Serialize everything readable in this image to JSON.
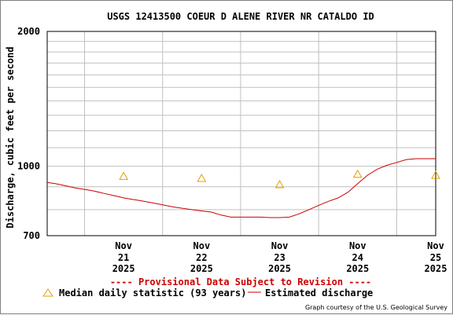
{
  "chart_data": {
    "type": "line",
    "title": "USGS 12413500 COEUR D ALENE RIVER NR CATALDO ID",
    "ylabel": "Discharge, cubic feet per second",
    "xlabel": "",
    "yscale": "log",
    "ylim": [
      700,
      2000
    ],
    "ytick_labels": [
      "2000",
      "1000",
      "700"
    ],
    "ytick_values": [
      2000,
      1000,
      700
    ],
    "xlim": [
      "2025-11-20 12:30",
      "2025-11-25 12:00"
    ],
    "xtick_labels": [
      {
        "month": "Nov",
        "day": "21",
        "year": "2025"
      },
      {
        "month": "Nov",
        "day": "22",
        "year": "2025"
      },
      {
        "month": "Nov",
        "day": "23",
        "year": "2025"
      },
      {
        "month": "Nov",
        "day": "24",
        "year": "2025"
      },
      {
        "month": "Nov",
        "day": "25",
        "year": "2025"
      }
    ],
    "xtick_values": [
      "2025-11-21",
      "2025-11-22",
      "2025-11-23",
      "2025-11-24",
      "2025-11-25"
    ],
    "grid": true,
    "series": [
      {
        "name": "Estimated discharge",
        "color": "#cc0000",
        "x": [
          "2025-11-20 12:30",
          "2025-11-20 15:00",
          "2025-11-20 18:00",
          "2025-11-20 21:00",
          "2025-11-21 00:00",
          "2025-11-21 03:00",
          "2025-11-21 06:00",
          "2025-11-21 09:00",
          "2025-11-21 12:00",
          "2025-11-21 15:00",
          "2025-11-21 18:00",
          "2025-11-21 21:00",
          "2025-11-22 00:00",
          "2025-11-22 03:00",
          "2025-11-22 06:00",
          "2025-11-22 09:00",
          "2025-11-22 12:00",
          "2025-11-22 15:00",
          "2025-11-22 18:00",
          "2025-11-22 21:00",
          "2025-11-23 00:00",
          "2025-11-23 03:00",
          "2025-11-23 06:00",
          "2025-11-23 09:00",
          "2025-11-23 12:00",
          "2025-11-23 15:00",
          "2025-11-23 18:00",
          "2025-11-23 21:00",
          "2025-11-24 00:00",
          "2025-11-24 03:00",
          "2025-11-24 06:00",
          "2025-11-24 09:00",
          "2025-11-24 12:00",
          "2025-11-24 15:00",
          "2025-11-24 18:00",
          "2025-11-24 21:00",
          "2025-11-25 00:00",
          "2025-11-25 03:00",
          "2025-11-25 06:00",
          "2025-11-25 09:00",
          "2025-11-25 12:00"
        ],
        "values": [
          920,
          915,
          905,
          895,
          888,
          880,
          870,
          860,
          850,
          843,
          836,
          828,
          820,
          812,
          806,
          800,
          795,
          790,
          778,
          770,
          770,
          770,
          770,
          768,
          768,
          770,
          783,
          800,
          818,
          835,
          850,
          875,
          915,
          955,
          985,
          1005,
          1020,
          1035,
          1040,
          1040,
          1040
        ]
      },
      {
        "name": "Median daily statistic (93 years)",
        "color": "#e0a000",
        "marker": "triangle",
        "x": [
          "2025-11-21 12:00",
          "2025-11-22 12:00",
          "2025-11-23 12:00",
          "2025-11-24 12:00",
          "2025-11-25 12:00"
        ],
        "values": [
          950,
          940,
          910,
          960,
          955
        ]
      }
    ],
    "legend": {
      "position": "bottom",
      "provisional_note": "---- Provisional Data Subject to Revision ----",
      "median_label": "Median daily statistic (93 years)",
      "discharge_label": "Estimated discharge"
    },
    "credit": "Graph courtesy of the U.S. Geological Survey",
    "colors": {
      "discharge": "#cc0000",
      "median": "#e0a000",
      "provisional": "#cc0000",
      "grid": "#c0c0c0",
      "axis": "#000000"
    }
  }
}
